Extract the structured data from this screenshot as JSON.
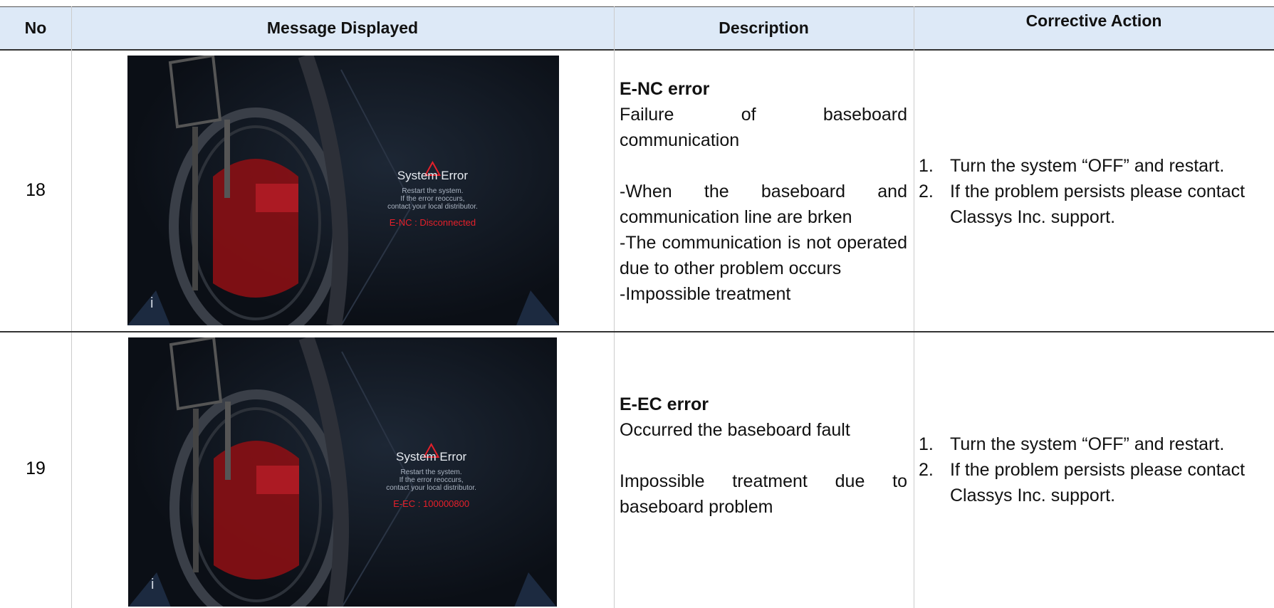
{
  "table": {
    "headers": [
      "No",
      "Message Displayed",
      "Description",
      "Corrective Action"
    ],
    "rows": [
      {
        "no": "18",
        "screen": {
          "icon": "i",
          "title": "System Error",
          "lines": [
            "Restart the system.",
            "If the error reoccurs,",
            "contact your local distributor."
          ],
          "code": "E-NC : Disconnected"
        },
        "description": {
          "title": "E-NC error",
          "lines": [
            "Failure of baseboard communication",
            "",
            "-When the baseboard and communication line are brken",
            "-The communication is not operated due to other problem occurs",
            "-Impossible treatment"
          ]
        },
        "actions": [
          {
            "marker": "1.",
            "text": "Turn the system “OFF” and restart."
          },
          {
            "marker": "2.",
            "text": "If the problem persists please contact Classys Inc. support."
          }
        ]
      },
      {
        "no": "19",
        "screen": {
          "icon": "i",
          "title": "System Error",
          "lines": [
            "Restart the system.",
            "If the error reoccurs,",
            "contact your local distributor."
          ],
          "code": "E-EC : 100000800"
        },
        "description": {
          "title": "E-EC error",
          "lines": [
            "Occurred the baseboard fault",
            "",
            "Impossible treatment due to baseboard problem"
          ]
        },
        "actions": [
          {
            "marker": "1.",
            "text": "Turn the system “OFF” and restart."
          },
          {
            "marker": "2.",
            "text": "If the problem persists please contact Classys Inc. support."
          }
        ]
      }
    ]
  }
}
